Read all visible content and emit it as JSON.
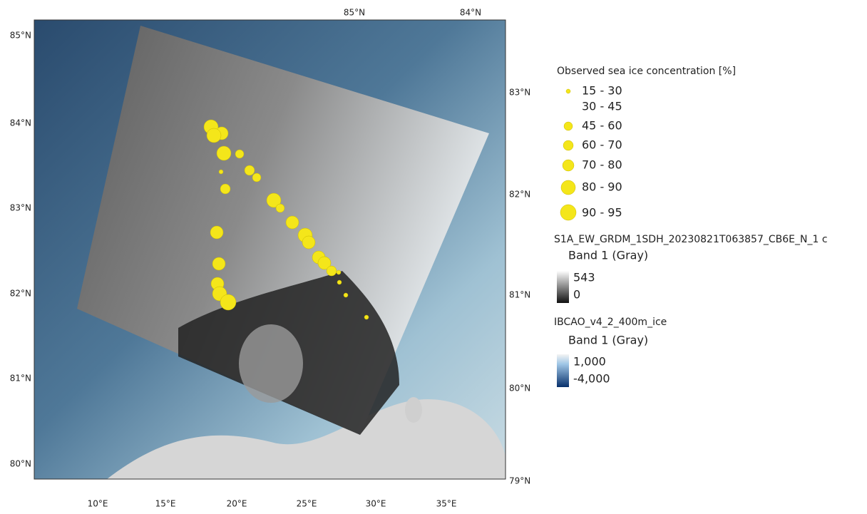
{
  "map": {
    "left_lat_labels": [
      "85°N",
      "84°N",
      "83°N",
      "82°N",
      "81°N",
      "80°N"
    ],
    "right_lat_labels": [
      "83°N",
      "82°N",
      "81°N",
      "80°N",
      "79°N"
    ],
    "top_lat_labels": [
      "85°N",
      "84°N"
    ],
    "bottom_lon_labels": [
      "10°E",
      "15°E",
      "20°E",
      "25°E",
      "30°E",
      "35°E"
    ]
  },
  "legend": {
    "points": {
      "title": "Observed sea ice concentration [%]",
      "classes": [
        "15 - 30",
        "30 - 45",
        "45 - 60",
        "60 - 70",
        "70 - 80",
        "80 - 90",
        "90 - 95"
      ]
    },
    "sar": {
      "title": "S1A_EW_GRDM_1SDH_20230821T063857_CB6E_N_1 c",
      "band": "Band 1 (Gray)",
      "max": "543",
      "min": "0"
    },
    "bathymetry": {
      "title": "IBCAO_v4_2_400m_ice",
      "band": "Band 1 (Gray)",
      "max": "1,000",
      "min": "-4,000"
    }
  }
}
